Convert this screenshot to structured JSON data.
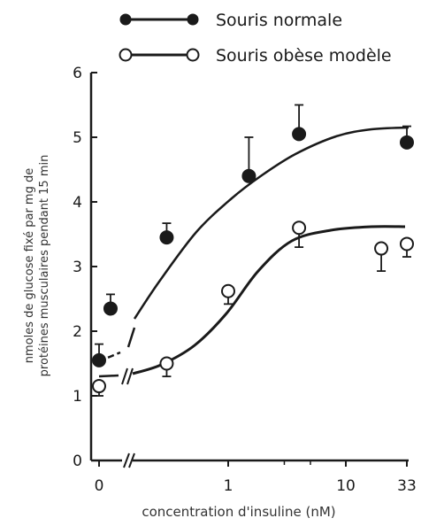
{
  "chart_data": {
    "type": "line",
    "xlabel": "concentration d'insuline (nM)",
    "ylabel_lines": [
      "nmoles de glucose fixé par mg de",
      "protéines musculaires pendant 15 min"
    ],
    "x_tick_labels": [
      "0",
      "1",
      "10",
      "33"
    ],
    "y_tick_labels": [
      "0",
      "1",
      "2",
      "3",
      "4",
      "5",
      "6"
    ],
    "ylim": [
      0,
      6
    ],
    "x_scale": "log (broken axis at 0)",
    "series": [
      {
        "name": "Souris normale",
        "marker": "filled",
        "x": [
          0,
          0.1,
          0.3,
          1.5,
          4,
          33
        ],
        "y": [
          1.55,
          2.35,
          3.45,
          4.4,
          5.05,
          4.92
        ],
        "error_up": [
          0.25,
          0.22,
          0.22,
          0.6,
          0.45,
          0.25
        ]
      },
      {
        "name": "Souris obèse modèle",
        "marker": "open",
        "x": [
          0,
          0.3,
          1,
          4,
          20,
          33
        ],
        "y": [
          1.15,
          1.5,
          2.62,
          3.6,
          3.28,
          3.35
        ],
        "error_down": [
          0.15,
          0.2,
          0.2,
          0.3,
          0.35,
          0.2
        ]
      }
    ],
    "legend_position": "top"
  }
}
